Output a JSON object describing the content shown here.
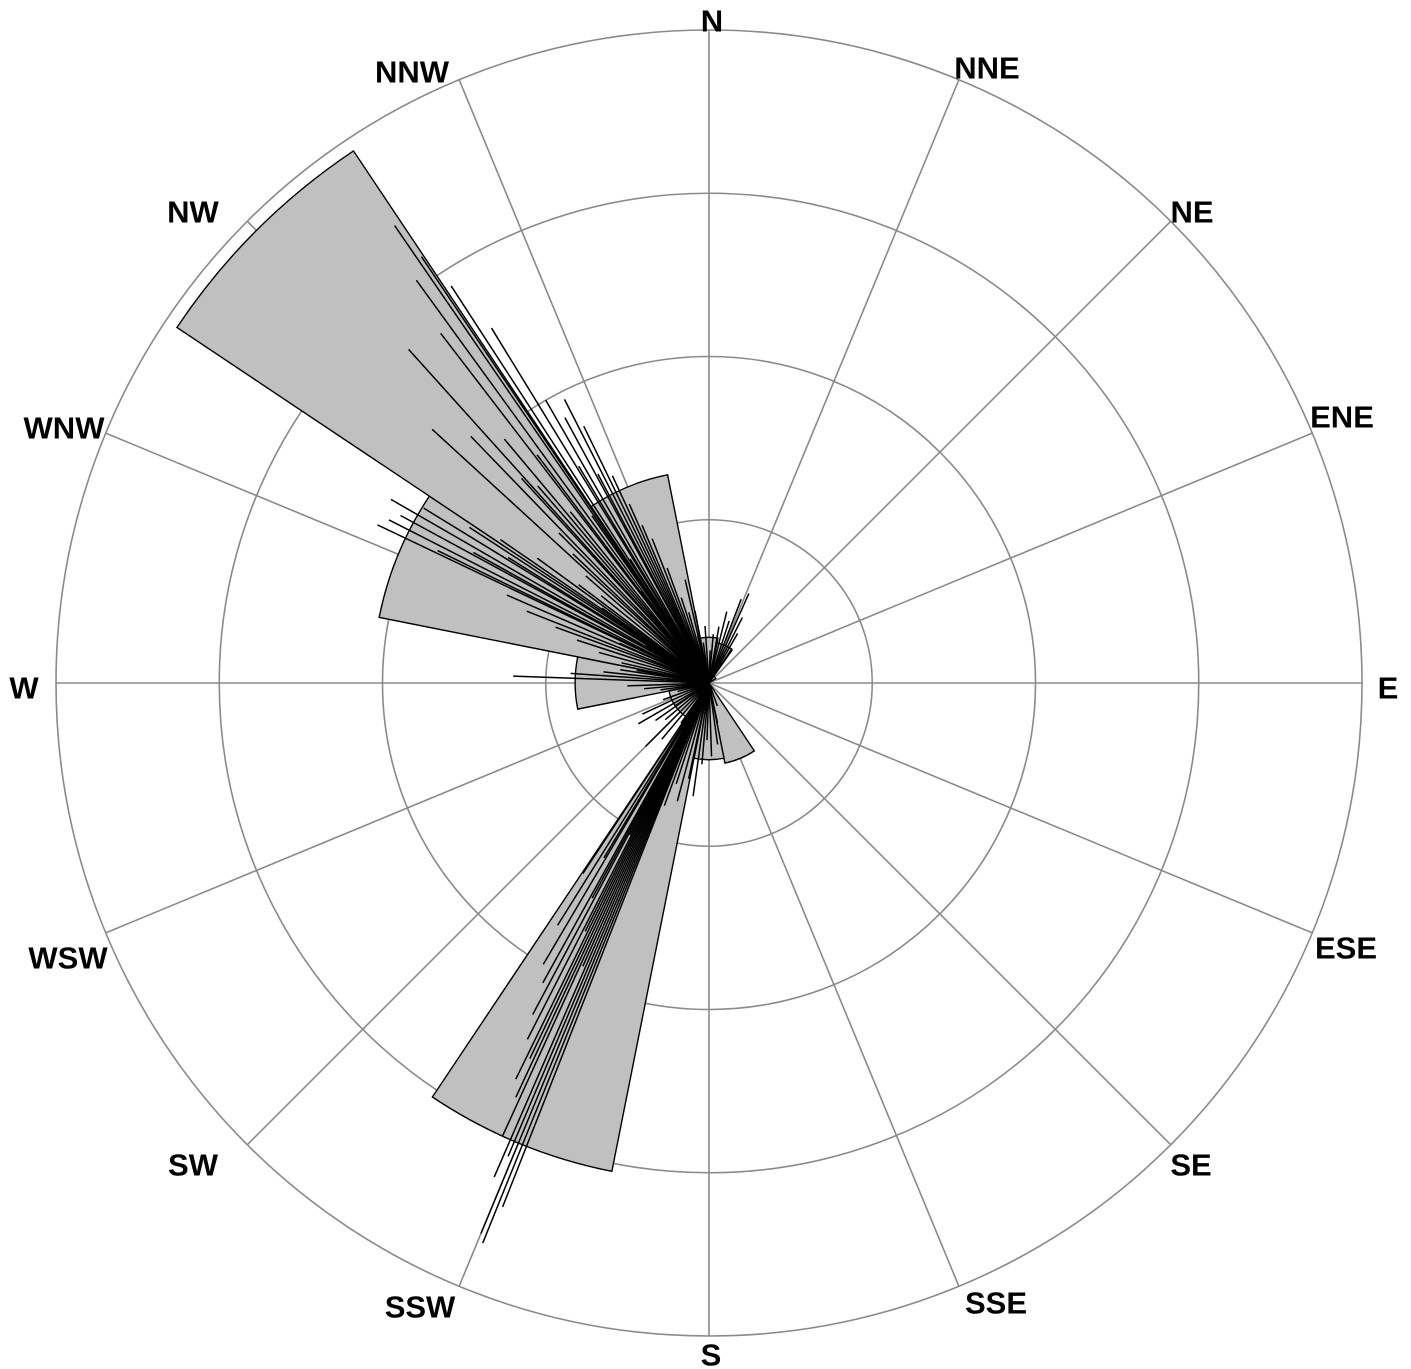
{
  "chart_data": {
    "type": "polar-bar",
    "title": "",
    "directions": [
      "N",
      "NNE",
      "NE",
      "ENE",
      "E",
      "ESE",
      "SE",
      "SSE",
      "S",
      "SSW",
      "SW",
      "WSW",
      "W",
      "WNW",
      "NW",
      "NNW"
    ],
    "radial_max": 4,
    "radial_rings": [
      1,
      2,
      3,
      4
    ],
    "grid": true,
    "sectors": [
      {
        "direction": "N",
        "value": 0.28
      },
      {
        "direction": "NNE",
        "value": 0.25
      },
      {
        "direction": "NE",
        "value": 0.05
      },
      {
        "direction": "ENE",
        "value": 0.0
      },
      {
        "direction": "E",
        "value": 0.0
      },
      {
        "direction": "ESE",
        "value": 0.0
      },
      {
        "direction": "SE",
        "value": 0.0
      },
      {
        "direction": "SSE",
        "value": 0.5
      },
      {
        "direction": "S",
        "value": 0.47
      },
      {
        "direction": "SSW",
        "value": 3.05
      },
      {
        "direction": "SW",
        "value": 0.25
      },
      {
        "direction": "WSW",
        "value": 0.25
      },
      {
        "direction": "W",
        "value": 0.82
      },
      {
        "direction": "WNW",
        "value": 2.06
      },
      {
        "direction": "NW",
        "value": 3.92
      },
      {
        "direction": "NNW",
        "value": 1.3
      }
    ],
    "observations": [
      {
        "bearing": 325.5,
        "value": 3.4
      },
      {
        "bearing": 326.0,
        "value": 3.15
      },
      {
        "bearing": 327.0,
        "value": 2.9
      },
      {
        "bearing": 324.0,
        "value": 3.05
      },
      {
        "bearing": 322.5,
        "value": 2.7
      },
      {
        "bearing": 328.5,
        "value": 2.55
      },
      {
        "bearing": 318.0,
        "value": 2.75
      },
      {
        "bearing": 312.5,
        "value": 2.3
      },
      {
        "bearing": 316.0,
        "value": 2.1
      },
      {
        "bearing": 320.0,
        "value": 1.95
      },
      {
        "bearing": 330.0,
        "value": 2.0
      },
      {
        "bearing": 331.5,
        "value": 1.85
      },
      {
        "bearing": 333.0,
        "value": 1.95
      },
      {
        "bearing": 334.0,
        "value": 1.75
      },
      {
        "bearing": 323.0,
        "value": 1.75
      },
      {
        "bearing": 319.0,
        "value": 1.6
      },
      {
        "bearing": 317.5,
        "value": 1.7
      },
      {
        "bearing": 329.0,
        "value": 1.55
      },
      {
        "bearing": 332.0,
        "value": 1.45
      },
      {
        "bearing": 335.0,
        "value": 1.4
      },
      {
        "bearing": 336.0,
        "value": 1.2
      },
      {
        "bearing": 337.0,
        "value": 1.05
      },
      {
        "bearing": 338.5,
        "value": 0.95
      },
      {
        "bearing": 321.0,
        "value": 1.35
      },
      {
        "bearing": 325.0,
        "value": 1.25
      },
      {
        "bearing": 315.0,
        "value": 1.3
      },
      {
        "bearing": 313.5,
        "value": 1.15
      },
      {
        "bearing": 311.0,
        "value": 1.0
      },
      {
        "bearing": 309.0,
        "value": 0.85
      },
      {
        "bearing": 340.0,
        "value": 0.75
      },
      {
        "bearing": 342.0,
        "value": 0.55
      },
      {
        "bearing": 344.0,
        "value": 0.45
      },
      {
        "bearing": 346.5,
        "value": 0.3
      },
      {
        "bearing": 327.5,
        "value": 0.9
      },
      {
        "bearing": 323.5,
        "value": 0.7
      },
      {
        "bearing": 319.5,
        "value": 0.55
      },
      {
        "bearing": 295.5,
        "value": 2.25
      },
      {
        "bearing": 297.0,
        "value": 2.2
      },
      {
        "bearing": 298.5,
        "value": 2.15
      },
      {
        "bearing": 300.0,
        "value": 2.25
      },
      {
        "bearing": 301.5,
        "value": 2.05
      },
      {
        "bearing": 296.0,
        "value": 1.85
      },
      {
        "bearing": 303.0,
        "value": 1.75
      },
      {
        "bearing": 304.5,
        "value": 1.55
      },
      {
        "bearing": 299.0,
        "value": 1.65
      },
      {
        "bearing": 302.0,
        "value": 1.45
      },
      {
        "bearing": 306.0,
        "value": 1.3
      },
      {
        "bearing": 293.5,
        "value": 1.35
      },
      {
        "bearing": 291.5,
        "value": 1.2
      },
      {
        "bearing": 290.0,
        "value": 1.0
      },
      {
        "bearing": 288.0,
        "value": 0.85
      },
      {
        "bearing": 285.5,
        "value": 0.7
      },
      {
        "bearing": 283.0,
        "value": 0.55
      },
      {
        "bearing": 307.0,
        "value": 1.0
      },
      {
        "bearing": 305.0,
        "value": 0.8
      },
      {
        "bearing": 294.0,
        "value": 0.6
      },
      {
        "bearing": 300.5,
        "value": 0.45
      },
      {
        "bearing": 272.0,
        "value": 1.2
      },
      {
        "bearing": 274.0,
        "value": 0.85
      },
      {
        "bearing": 276.0,
        "value": 0.65
      },
      {
        "bearing": 278.5,
        "value": 0.55
      },
      {
        "bearing": 280.0,
        "value": 0.45
      },
      {
        "bearing": 268.0,
        "value": 0.5
      },
      {
        "bearing": 265.0,
        "value": 0.4
      },
      {
        "bearing": 262.0,
        "value": 0.3
      },
      {
        "bearing": 259.0,
        "value": 0.25
      },
      {
        "bearing": 255.0,
        "value": 0.2
      },
      {
        "bearing": 250.0,
        "value": 0.3
      },
      {
        "bearing": 245.0,
        "value": 0.45
      },
      {
        "bearing": 240.0,
        "value": 0.5
      },
      {
        "bearing": 235.0,
        "value": 0.4
      },
      {
        "bearing": 230.0,
        "value": 0.35
      },
      {
        "bearing": 225.0,
        "value": 0.55
      },
      {
        "bearing": 220.0,
        "value": 0.45
      },
      {
        "bearing": 215.0,
        "value": 0.3
      },
      {
        "bearing": 202.0,
        "value": 3.7
      },
      {
        "bearing": 202.5,
        "value": 3.65
      },
      {
        "bearing": 201.5,
        "value": 3.45
      },
      {
        "bearing": 203.5,
        "value": 3.3
      },
      {
        "bearing": 203.0,
        "value": 3.15
      },
      {
        "bearing": 204.5,
        "value": 3.05
      },
      {
        "bearing": 205.0,
        "value": 2.8
      },
      {
        "bearing": 206.0,
        "value": 2.7
      },
      {
        "bearing": 205.5,
        "value": 2.55
      },
      {
        "bearing": 207.0,
        "value": 2.45
      },
      {
        "bearing": 208.0,
        "value": 2.3
      },
      {
        "bearing": 209.0,
        "value": 2.1
      },
      {
        "bearing": 210.5,
        "value": 2.0
      },
      {
        "bearing": 212.0,
        "value": 1.75
      },
      {
        "bearing": 204.0,
        "value": 1.9
      },
      {
        "bearing": 206.5,
        "value": 1.7
      },
      {
        "bearing": 208.5,
        "value": 1.5
      },
      {
        "bearing": 213.5,
        "value": 1.4
      },
      {
        "bearing": 211.0,
        "value": 1.25
      },
      {
        "bearing": 207.5,
        "value": 1.05
      },
      {
        "bearing": 203.0,
        "value": 0.9
      },
      {
        "bearing": 200.0,
        "value": 0.8
      },
      {
        "bearing": 198.0,
        "value": 0.65
      },
      {
        "bearing": 195.0,
        "value": 0.75
      },
      {
        "bearing": 192.0,
        "value": 0.6
      },
      {
        "bearing": 188.0,
        "value": 0.7
      },
      {
        "bearing": 185.0,
        "value": 0.5
      },
      {
        "bearing": 182.0,
        "value": 0.35
      },
      {
        "bearing": 178.0,
        "value": 0.45
      },
      {
        "bearing": 172.0,
        "value": 0.38
      },
      {
        "bearing": 168.0,
        "value": 0.25
      },
      {
        "bearing": 160.0,
        "value": 0.15
      },
      {
        "bearing": 10.0,
        "value": 0.35
      },
      {
        "bearing": 14.0,
        "value": 0.45
      },
      {
        "bearing": 18.0,
        "value": 0.4
      },
      {
        "bearing": 21.0,
        "value": 0.55
      },
      {
        "bearing": 24.0,
        "value": 0.6
      },
      {
        "bearing": 27.0,
        "value": 0.45
      },
      {
        "bearing": 30.0,
        "value": 0.35
      },
      {
        "bearing": 35.0,
        "value": 0.25
      },
      {
        "bearing": 5.0,
        "value": 0.3
      },
      {
        "bearing": 2.0,
        "value": 0.2
      },
      {
        "bearing": 356.0,
        "value": 0.35
      },
      {
        "bearing": 352.0,
        "value": 0.25
      },
      {
        "bearing": 349.0,
        "value": 0.45
      },
      {
        "bearing": 347.0,
        "value": 0.65
      }
    ]
  }
}
